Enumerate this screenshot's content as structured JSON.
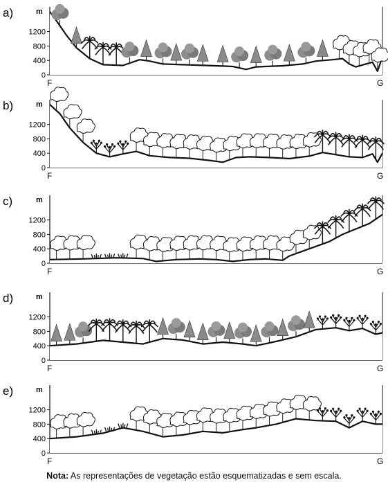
{
  "panels": [
    {
      "letter": "a)",
      "unit": "m",
      "ticks": [
        "1200",
        "800",
        "400",
        "0"
      ],
      "start_label": "F",
      "end_label": "G",
      "profile": [
        [
          0,
          1750
        ],
        [
          0.02,
          1500
        ],
        [
          0.05,
          1100
        ],
        [
          0.08,
          750
        ],
        [
          0.12,
          450
        ],
        [
          0.16,
          280
        ],
        [
          0.22,
          260
        ],
        [
          0.27,
          420
        ],
        [
          0.3,
          380
        ],
        [
          0.34,
          300
        ],
        [
          0.4,
          280
        ],
        [
          0.5,
          250
        ],
        [
          0.55,
          230
        ],
        [
          0.59,
          150
        ],
        [
          0.62,
          220
        ],
        [
          0.7,
          250
        ],
        [
          0.76,
          300
        ],
        [
          0.8,
          380
        ],
        [
          0.85,
          420
        ],
        [
          0.88,
          450
        ],
        [
          0.9,
          300
        ],
        [
          0.92,
          220
        ],
        [
          0.95,
          300
        ],
        [
          0.97,
          350
        ],
        [
          0.985,
          100
        ],
        [
          1.0,
          500
        ]
      ],
      "vegetation": [
        {
          "x": 0.03,
          "k": "deciduous"
        },
        {
          "x": 0.08,
          "k": "conifer"
        },
        {
          "x": 0.12,
          "k": "palm"
        },
        {
          "x": 0.16,
          "k": "palm"
        },
        {
          "x": 0.2,
          "k": "palm"
        },
        {
          "x": 0.24,
          "k": "deciduous"
        },
        {
          "x": 0.29,
          "k": "conifer"
        },
        {
          "x": 0.34,
          "k": "deciduous"
        },
        {
          "x": 0.38,
          "k": "conifer"
        },
        {
          "x": 0.42,
          "k": "deciduous"
        },
        {
          "x": 0.46,
          "k": "conifer"
        },
        {
          "x": 0.52,
          "k": "conifer"
        },
        {
          "x": 0.57,
          "k": "deciduous"
        },
        {
          "x": 0.62,
          "k": "conifer"
        },
        {
          "x": 0.67,
          "k": "deciduous"
        },
        {
          "x": 0.72,
          "k": "conifer"
        },
        {
          "x": 0.77,
          "k": "deciduous"
        },
        {
          "x": 0.82,
          "k": "conifer"
        },
        {
          "x": 0.87,
          "k": "cloud"
        },
        {
          "x": 0.9,
          "k": "cloud"
        },
        {
          "x": 0.93,
          "k": "cloud"
        },
        {
          "x": 0.96,
          "k": "cloud"
        },
        {
          "x": 0.985,
          "k": "cloud"
        }
      ]
    },
    {
      "letter": "b)",
      "unit": "m",
      "ticks": [
        "1200",
        "800",
        "400",
        "0"
      ],
      "start_label": "F",
      "end_label": "G",
      "profile": [
        [
          0,
          1750
        ],
        [
          0.03,
          1500
        ],
        [
          0.06,
          1100
        ],
        [
          0.1,
          700
        ],
        [
          0.14,
          400
        ],
        [
          0.18,
          300
        ],
        [
          0.22,
          380
        ],
        [
          0.26,
          450
        ],
        [
          0.3,
          330
        ],
        [
          0.36,
          280
        ],
        [
          0.42,
          260
        ],
        [
          0.48,
          200
        ],
        [
          0.52,
          150
        ],
        [
          0.56,
          280
        ],
        [
          0.6,
          300
        ],
        [
          0.66,
          280
        ],
        [
          0.72,
          250
        ],
        [
          0.78,
          320
        ],
        [
          0.82,
          420
        ],
        [
          0.86,
          360
        ],
        [
          0.9,
          300
        ],
        [
          0.94,
          280
        ],
        [
          0.97,
          380
        ],
        [
          0.985,
          150
        ],
        [
          1.0,
          400
        ]
      ],
      "vegetation": [
        {
          "x": 0.02,
          "k": "cloud"
        },
        {
          "x": 0.06,
          "k": "cloud"
        },
        {
          "x": 0.1,
          "k": "cloud"
        },
        {
          "x": 0.14,
          "k": "shrub"
        },
        {
          "x": 0.18,
          "k": "shrub"
        },
        {
          "x": 0.22,
          "k": "shrub"
        },
        {
          "x": 0.26,
          "k": "cloud"
        },
        {
          "x": 0.3,
          "k": "cloud"
        },
        {
          "x": 0.34,
          "k": "cloud"
        },
        {
          "x": 0.38,
          "k": "cloud"
        },
        {
          "x": 0.42,
          "k": "cloud"
        },
        {
          "x": 0.46,
          "k": "cloud"
        },
        {
          "x": 0.5,
          "k": "cloud"
        },
        {
          "x": 0.54,
          "k": "cloud"
        },
        {
          "x": 0.58,
          "k": "cloud"
        },
        {
          "x": 0.62,
          "k": "cloud"
        },
        {
          "x": 0.66,
          "k": "cloud"
        },
        {
          "x": 0.7,
          "k": "cloud"
        },
        {
          "x": 0.74,
          "k": "cloud"
        },
        {
          "x": 0.78,
          "k": "cloud"
        },
        {
          "x": 0.82,
          "k": "palm"
        },
        {
          "x": 0.86,
          "k": "palm"
        },
        {
          "x": 0.9,
          "k": "palm"
        },
        {
          "x": 0.94,
          "k": "palm"
        },
        {
          "x": 0.98,
          "k": "palm"
        }
      ]
    },
    {
      "letter": "c)",
      "unit": "m",
      "ticks": [
        "1200",
        "800",
        "400",
        "0"
      ],
      "start_label": "F",
      "end_label": "G",
      "profile": [
        [
          0,
          100
        ],
        [
          0.1,
          120
        ],
        [
          0.2,
          150
        ],
        [
          0.28,
          130
        ],
        [
          0.32,
          50
        ],
        [
          0.38,
          100
        ],
        [
          0.45,
          120
        ],
        [
          0.5,
          100
        ],
        [
          0.55,
          50
        ],
        [
          0.6,
          100
        ],
        [
          0.65,
          120
        ],
        [
          0.7,
          80
        ],
        [
          0.72,
          200
        ],
        [
          0.78,
          400
        ],
        [
          0.84,
          600
        ],
        [
          0.88,
          800
        ],
        [
          0.92,
          950
        ],
        [
          0.96,
          1100
        ],
        [
          1.0,
          1350
        ]
      ],
      "vegetation": [
        {
          "x": 0.02,
          "k": "cloud"
        },
        {
          "x": 0.06,
          "k": "cloud"
        },
        {
          "x": 0.1,
          "k": "cloud"
        },
        {
          "x": 0.14,
          "k": "grass"
        },
        {
          "x": 0.18,
          "k": "grass"
        },
        {
          "x": 0.22,
          "k": "grass"
        },
        {
          "x": 0.26,
          "k": "cloud"
        },
        {
          "x": 0.3,
          "k": "cloud"
        },
        {
          "x": 0.34,
          "k": "cloud"
        },
        {
          "x": 0.38,
          "k": "cloud"
        },
        {
          "x": 0.42,
          "k": "cloud"
        },
        {
          "x": 0.46,
          "k": "cloud"
        },
        {
          "x": 0.5,
          "k": "cloud"
        },
        {
          "x": 0.54,
          "k": "cloud"
        },
        {
          "x": 0.58,
          "k": "cloud"
        },
        {
          "x": 0.62,
          "k": "cloud"
        },
        {
          "x": 0.66,
          "k": "cloud"
        },
        {
          "x": 0.7,
          "k": "cloud"
        },
        {
          "x": 0.74,
          "k": "cloud"
        },
        {
          "x": 0.78,
          "k": "cloud"
        },
        {
          "x": 0.82,
          "k": "palm"
        },
        {
          "x": 0.86,
          "k": "palm"
        },
        {
          "x": 0.9,
          "k": "palm"
        },
        {
          "x": 0.94,
          "k": "palm"
        },
        {
          "x": 0.98,
          "k": "palm"
        }
      ]
    },
    {
      "letter": "d)",
      "unit": "m",
      "ticks": [
        "1200",
        "800",
        "400",
        "0"
      ],
      "start_label": "F",
      "end_label": "G",
      "profile": [
        [
          0,
          400
        ],
        [
          0.08,
          450
        ],
        [
          0.16,
          550
        ],
        [
          0.22,
          500
        ],
        [
          0.28,
          450
        ],
        [
          0.34,
          600
        ],
        [
          0.4,
          560
        ],
        [
          0.46,
          450
        ],
        [
          0.52,
          500
        ],
        [
          0.58,
          450
        ],
        [
          0.62,
          400
        ],
        [
          0.68,
          520
        ],
        [
          0.74,
          650
        ],
        [
          0.8,
          850
        ],
        [
          0.86,
          900
        ],
        [
          0.9,
          820
        ],
        [
          0.94,
          880
        ],
        [
          0.98,
          720
        ],
        [
          1.0,
          760
        ]
      ],
      "vegetation": [
        {
          "x": 0.02,
          "k": "conifer"
        },
        {
          "x": 0.06,
          "k": "conifer"
        },
        {
          "x": 0.1,
          "k": "deciduous"
        },
        {
          "x": 0.14,
          "k": "palm"
        },
        {
          "x": 0.18,
          "k": "palm"
        },
        {
          "x": 0.22,
          "k": "palm"
        },
        {
          "x": 0.26,
          "k": "palm"
        },
        {
          "x": 0.3,
          "k": "palm"
        },
        {
          "x": 0.34,
          "k": "conifer"
        },
        {
          "x": 0.38,
          "k": "deciduous"
        },
        {
          "x": 0.42,
          "k": "conifer"
        },
        {
          "x": 0.46,
          "k": "conifer"
        },
        {
          "x": 0.5,
          "k": "deciduous"
        },
        {
          "x": 0.54,
          "k": "conifer"
        },
        {
          "x": 0.58,
          "k": "deciduous"
        },
        {
          "x": 0.62,
          "k": "conifer"
        },
        {
          "x": 0.66,
          "k": "deciduous"
        },
        {
          "x": 0.7,
          "k": "conifer"
        },
        {
          "x": 0.74,
          "k": "deciduous"
        },
        {
          "x": 0.78,
          "k": "conifer"
        },
        {
          "x": 0.82,
          "k": "shrub"
        },
        {
          "x": 0.86,
          "k": "shrub"
        },
        {
          "x": 0.9,
          "k": "shrub"
        },
        {
          "x": 0.94,
          "k": "shrub"
        },
        {
          "x": 0.98,
          "k": "shrub"
        }
      ]
    },
    {
      "letter": "e)",
      "unit": "m",
      "ticks": [
        "1200",
        "800",
        "400",
        "0"
      ],
      "start_label": "F",
      "end_label": "G",
      "profile": [
        [
          0,
          400
        ],
        [
          0.08,
          450
        ],
        [
          0.16,
          550
        ],
        [
          0.22,
          700
        ],
        [
          0.28,
          600
        ],
        [
          0.34,
          450
        ],
        [
          0.4,
          500
        ],
        [
          0.46,
          600
        ],
        [
          0.52,
          560
        ],
        [
          0.58,
          650
        ],
        [
          0.62,
          700
        ],
        [
          0.68,
          800
        ],
        [
          0.74,
          950
        ],
        [
          0.8,
          900
        ],
        [
          0.86,
          880
        ],
        [
          0.9,
          700
        ],
        [
          0.94,
          880
        ],
        [
          0.98,
          800
        ],
        [
          1.0,
          800
        ]
      ],
      "vegetation": [
        {
          "x": 0.02,
          "k": "cloud"
        },
        {
          "x": 0.06,
          "k": "cloud"
        },
        {
          "x": 0.1,
          "k": "cloud"
        },
        {
          "x": 0.14,
          "k": "grass"
        },
        {
          "x": 0.18,
          "k": "grass"
        },
        {
          "x": 0.22,
          "k": "grass"
        },
        {
          "x": 0.26,
          "k": "cloud"
        },
        {
          "x": 0.3,
          "k": "cloud"
        },
        {
          "x": 0.34,
          "k": "cloud"
        },
        {
          "x": 0.38,
          "k": "cloud"
        },
        {
          "x": 0.42,
          "k": "cloud"
        },
        {
          "x": 0.46,
          "k": "cloud"
        },
        {
          "x": 0.5,
          "k": "cloud"
        },
        {
          "x": 0.54,
          "k": "cloud"
        },
        {
          "x": 0.58,
          "k": "cloud"
        },
        {
          "x": 0.62,
          "k": "cloud"
        },
        {
          "x": 0.66,
          "k": "cloud"
        },
        {
          "x": 0.7,
          "k": "cloud"
        },
        {
          "x": 0.74,
          "k": "cloud"
        },
        {
          "x": 0.78,
          "k": "cloud"
        },
        {
          "x": 0.82,
          "k": "shrub"
        },
        {
          "x": 0.86,
          "k": "shrub"
        },
        {
          "x": 0.9,
          "k": "shrub"
        },
        {
          "x": 0.94,
          "k": "shrub"
        },
        {
          "x": 0.98,
          "k": "shrub"
        }
      ]
    }
  ],
  "note": {
    "label": "Nota:",
    "text": " As representações de vegetação estão esquematizadas e sem escala."
  }
}
